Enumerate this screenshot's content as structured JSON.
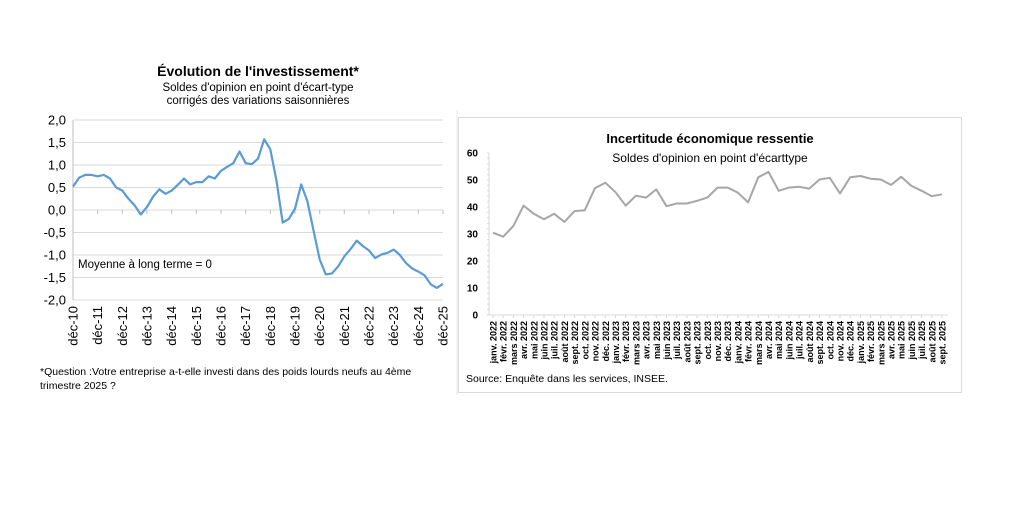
{
  "chart_data": [
    {
      "type": "line",
      "title": "Évolution de l'investissement*",
      "subtitle_1": "Soldes d'opinion en point d'écart-type",
      "subtitle_2": "corrigés des variations saisonnières",
      "annotation": "Moyenne à long terme = 0",
      "footnote_1": "*Question :Votre entreprise a-t-elle investi dans des poids lourds neufs au 4ème",
      "footnote_2": "trimestre 2025 ?",
      "xlabel": "",
      "ylabel": "",
      "ylim": [
        -2.0,
        2.0
      ],
      "y_ticks": [
        "2,0",
        "1,5",
        "1,0",
        "0,5",
        "0,0",
        "-0,5",
        "-1,0",
        "-1,5",
        "-2,0"
      ],
      "x_tick_labels": [
        "déc-10",
        "déc-11",
        "déc-12",
        "déc-13",
        "déc-14",
        "déc-15",
        "déc-16",
        "déc-17",
        "déc-18",
        "déc-19",
        "déc-20",
        "déc-21",
        "déc-22",
        "déc-23",
        "déc-24",
        "déc-25"
      ],
      "frequency": "quarterly",
      "grid": true,
      "color": "#5B9BD5",
      "values": [
        0.52,
        0.72,
        0.78,
        0.78,
        0.75,
        0.78,
        0.7,
        0.5,
        0.43,
        0.25,
        0.1,
        -0.1,
        0.07,
        0.3,
        0.46,
        0.36,
        0.43,
        0.56,
        0.7,
        0.57,
        0.62,
        0.62,
        0.75,
        0.7,
        0.87,
        0.96,
        1.04,
        1.3,
        1.04,
        1.02,
        1.14,
        1.57,
        1.35,
        0.65,
        -0.28,
        -0.2,
        0.03,
        0.57,
        0.2,
        -0.45,
        -1.1,
        -1.43,
        -1.41,
        -1.25,
        -1.03,
        -0.87,
        -0.68,
        -0.8,
        -0.9,
        -1.07,
        -0.99,
        -0.95,
        -0.88,
        -1.0,
        -1.18,
        -1.3,
        -1.37,
        -1.45,
        -1.65,
        -1.73,
        -1.64
      ]
    },
    {
      "type": "line",
      "title": "Incertitude économique ressentie",
      "subtitle": "Soldes d'opinion en point d'écarttype",
      "source": "Source: Enquête dans les services, INSEE.",
      "xlabel": "",
      "ylabel": "",
      "ylim": [
        0,
        60
      ],
      "y_ticks": [
        "60",
        "50",
        "40",
        "30",
        "20",
        "10",
        "0"
      ],
      "grid": false,
      "color": "#A6A6A6",
      "x": [
        "janv. 2022",
        "févr. 2022",
        "mars 2022",
        "avr. 2022",
        "mai 2022",
        "juin 2022",
        "juil. 2022",
        "août 2022",
        "sept. 2022",
        "oct. 2022",
        "nov. 2022",
        "déc. 2022",
        "janv. 2023",
        "févr. 2023",
        "mars 2023",
        "avr. 2023",
        "mai 2023",
        "juin 2023",
        "juil. 2023",
        "août 2023",
        "sept. 2023",
        "oct. 2023",
        "nov. 2023",
        "déc. 2023",
        "janv. 2024",
        "févr. 2024",
        "mars 2024",
        "avr. 2024",
        "mai 2024",
        "juin 2024",
        "juil. 2024",
        "août 2024",
        "sept. 2024",
        "oct. 2024",
        "nov. 2024",
        "déc. 2024",
        "janv. 2025",
        "févr. 2025",
        "mars 2025",
        "avr. 2025",
        "mai 2025",
        "juin 2025",
        "juil. 2025",
        "août 2025",
        "sept. 2025"
      ],
      "values": [
        30.5,
        29,
        33,
        40.5,
        37.5,
        35.5,
        37.5,
        34.5,
        38.5,
        38.8,
        47,
        49,
        45.5,
        40.5,
        44.2,
        43.5,
        46.5,
        40.3,
        41.3,
        41.3,
        42.3,
        43.5,
        47.2,
        47.2,
        45.3,
        41.7,
        51,
        53,
        46,
        47.2,
        47.5,
        46.8,
        50.2,
        50.8,
        45,
        51,
        51.5,
        50.5,
        50.2,
        48.2,
        51.2,
        47.8,
        46,
        44,
        44.7
      ]
    }
  ]
}
